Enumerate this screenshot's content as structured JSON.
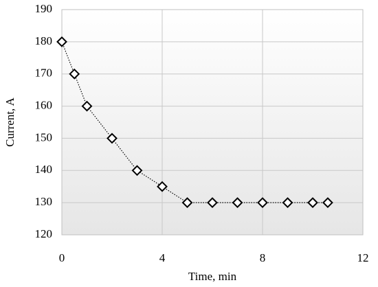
{
  "chart_data": {
    "type": "line",
    "x_label": "Time, min",
    "y_label": "Current, A",
    "x": [
      0,
      0.5,
      1,
      2,
      3,
      4,
      5,
      6,
      7,
      8,
      9,
      10,
      10.6
    ],
    "series": [
      {
        "values": [
          180,
          170,
          160,
          150,
          140,
          135,
          130,
          130,
          130,
          130,
          130,
          130,
          130
        ],
        "color": "#000000"
      }
    ],
    "xlim": [
      0,
      12
    ],
    "xticks": [
      0,
      4,
      8,
      12
    ],
    "ylim": [
      120,
      190
    ],
    "yticks": [
      120,
      130,
      140,
      150,
      160,
      170,
      180,
      190
    ],
    "grid": true,
    "marker": "diamond",
    "line_style": "dotted"
  }
}
